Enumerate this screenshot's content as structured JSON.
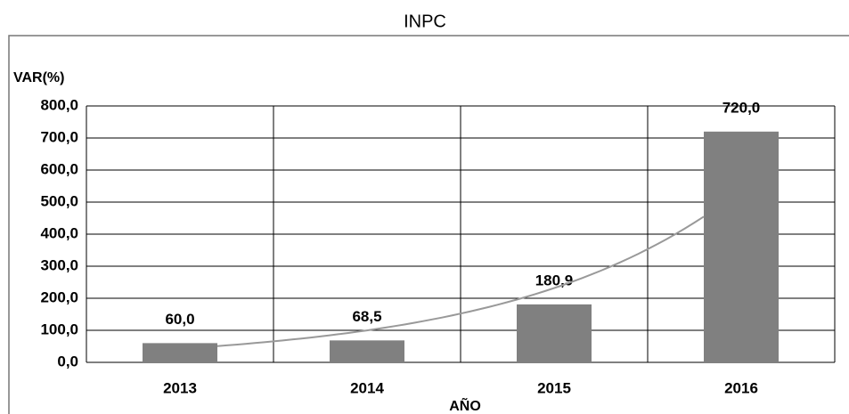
{
  "chart_data": {
    "type": "bar",
    "title": "INPC",
    "y_label": "VAR(%)",
    "x_label": "AÑO",
    "categories": [
      "2013",
      "2014",
      "2015",
      "2016"
    ],
    "values": [
      60,
      68.5,
      180.9,
      720
    ],
    "value_labels": [
      "60,0",
      "68,5",
      "180,9",
      "720,0"
    ],
    "color": "#808080",
    "trendline": "exponential",
    "trendline_color": "#999999",
    "ylim": [
      0,
      800
    ],
    "yticks": [
      {
        "value": 0,
        "label": "0,0"
      },
      {
        "value": 100,
        "label": "100,0"
      },
      {
        "value": 200,
        "label": "200,0"
      },
      {
        "value": 300,
        "label": "300,0"
      },
      {
        "value": 400,
        "label": "400,0"
      },
      {
        "value": 500,
        "label": "500,0"
      },
      {
        "value": 600,
        "label": "600,0"
      },
      {
        "value": 700,
        "label": "700,0"
      },
      {
        "value": 800,
        "label": "800,0"
      }
    ],
    "grid": true
  }
}
